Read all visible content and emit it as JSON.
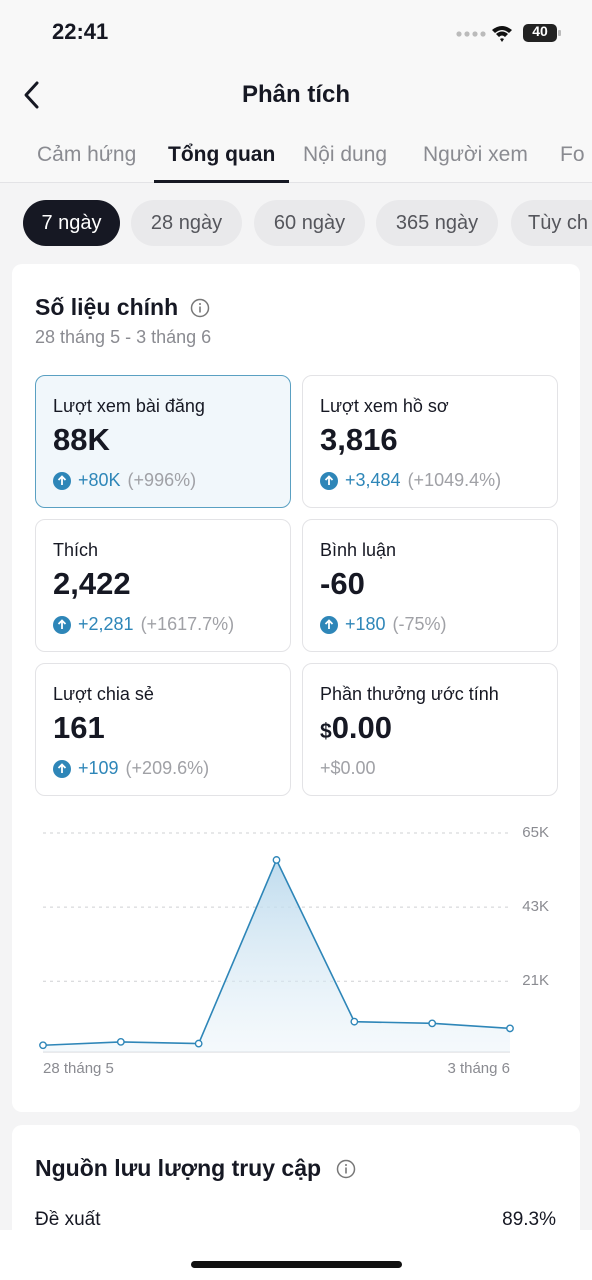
{
  "status_bar": {
    "time": "22:41",
    "battery": "40"
  },
  "header": {
    "title": "Phân tích"
  },
  "tabs": [
    "Cảm hứng",
    "Tổng quan",
    "Nội dung",
    "Người xem",
    "Fo"
  ],
  "periods": [
    "7 ngày",
    "28 ngày",
    "60 ngày",
    "365 ngày",
    "Tùy ch"
  ],
  "metrics": {
    "title": "Số liệu chính",
    "date_range": "28 tháng 5 - 3 tháng 6",
    "cards": [
      {
        "label": "Lượt xem bài đăng",
        "value": "88K",
        "change": "+80K",
        "percent": "(+996%)"
      },
      {
        "label": "Lượt xem hồ sơ",
        "value": "3,816",
        "change": "+3,484",
        "percent": "(+1049.4%)"
      },
      {
        "label": "Thích",
        "value": "2,422",
        "change": "+2,281",
        "percent": "(+1617.7%)"
      },
      {
        "label": "Bình luận",
        "value": "-60",
        "change": "+180",
        "percent": "(-75%)"
      },
      {
        "label": "Lượt chia sẻ",
        "value": "161",
        "change": "+109",
        "percent": "(+209.6%)"
      },
      {
        "label": "Phần thưởng ước tính",
        "currency": "$",
        "value": "0.00",
        "change": "+$0.00"
      }
    ]
  },
  "chart_data": {
    "type": "line",
    "categories": [
      "28 tháng 5",
      null,
      null,
      null,
      null,
      null,
      "3 tháng 6"
    ],
    "values": [
      2000,
      3000,
      2500,
      57000,
      9000,
      8500,
      7000
    ],
    "color": "#2e86b8",
    "ylim": [
      0,
      65000
    ],
    "yticks": [
      {
        "value": 21000,
        "label": "21K"
      },
      {
        "value": 43000,
        "label": "43K"
      },
      {
        "value": 65000,
        "label": "65K"
      }
    ],
    "grid": true
  },
  "traffic": {
    "title": "Nguồn lưu lượng truy cập",
    "rows": [
      {
        "label": "Đề xuất",
        "value": "89.3%"
      }
    ]
  }
}
